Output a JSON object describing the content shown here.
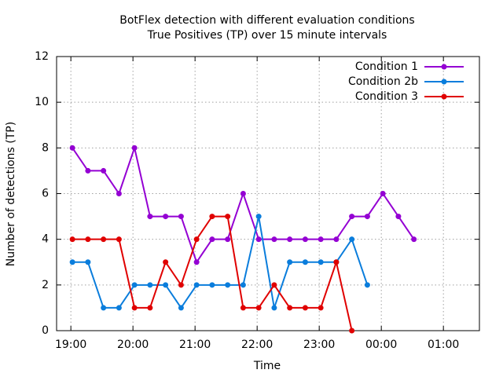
{
  "chart_data": {
    "type": "line",
    "title": "BotFlex detection with different evaluation conditions",
    "subtitle": "True Positives (TP) over 15 minute intervals",
    "x_label": "Time",
    "y_label": "Number of detections (TP)",
    "x": [
      19.025,
      19.275,
      19.525,
      19.775,
      20.025,
      20.275,
      20.525,
      20.775,
      21.025,
      21.275,
      21.525,
      21.775,
      22.025,
      22.275,
      22.525,
      22.775,
      23.025,
      23.275,
      23.525,
      23.775,
      24.025,
      24.275,
      24.525
    ],
    "series": [
      {
        "name": "Condition 1",
        "color": "#9400d3",
        "values": [
          8,
          7,
          7,
          6,
          8,
          5,
          5,
          5,
          3,
          4,
          4,
          6,
          4,
          4,
          4,
          4,
          4,
          4,
          5,
          5,
          6,
          5,
          4
        ]
      },
      {
        "name": "Condition 2b",
        "color": "#0a7ddc",
        "values": [
          3,
          3,
          1,
          1,
          2,
          2,
          2,
          1,
          2,
          2,
          2,
          2,
          5,
          1,
          3,
          3,
          3,
          3,
          4,
          2,
          null,
          null,
          null
        ]
      },
      {
        "name": "Condition 3",
        "color": "#e00000",
        "values": [
          4,
          4,
          4,
          4,
          1,
          1,
          3,
          2,
          4,
          5,
          5,
          1,
          1,
          2,
          1,
          1,
          1,
          3,
          0,
          null,
          null,
          null,
          null
        ]
      }
    ],
    "xlim": [
      18.77,
      25.58
    ],
    "xticks": [
      {
        "value": 19,
        "label": "19:00"
      },
      {
        "value": 20,
        "label": "20:00"
      },
      {
        "value": 21,
        "label": "21:00"
      },
      {
        "value": 22,
        "label": "22:00"
      },
      {
        "value": 23,
        "label": "23:00"
      },
      {
        "value": 24,
        "label": "00:00"
      },
      {
        "value": 25,
        "label": "01:00"
      }
    ],
    "ylim": [
      0,
      12
    ],
    "yticks": [
      0,
      2,
      4,
      6,
      8,
      10,
      12
    ],
    "grid": true,
    "legend": "top-right"
  }
}
